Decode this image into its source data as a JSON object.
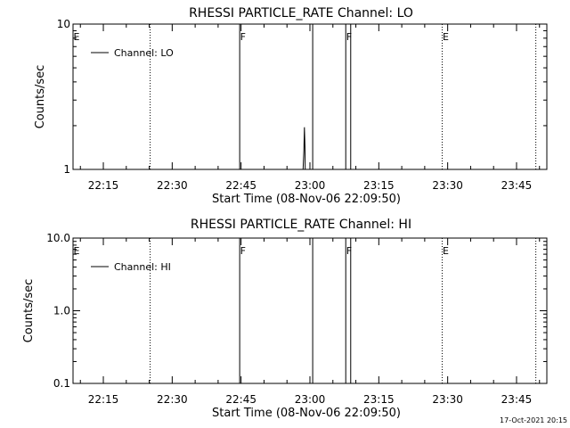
{
  "footer_timestamp": "17-Oct-2021 20:15",
  "colors": {
    "background": "#ffffff",
    "foreground": "#000000"
  },
  "chart_data": [
    {
      "type": "line",
      "title": "RHESSI PARTICLE_RATE Channel: LO",
      "xlabel": "Start Time (08-Nov-06 22:09:50)",
      "ylabel": "Counts/sec",
      "yscale": "log",
      "ylim": [
        1,
        10
      ],
      "yticks": [
        {
          "value": 1,
          "label": "1"
        },
        {
          "value": 10,
          "label": "10"
        }
      ],
      "xlim": [
        22.14,
        23.86
      ],
      "xticks": [
        {
          "value": 22.25,
          "label": "22:15"
        },
        {
          "value": 22.5,
          "label": "22:30"
        },
        {
          "value": 22.75,
          "label": "22:45"
        },
        {
          "value": 23.0,
          "label": "23:00"
        },
        {
          "value": 23.25,
          "label": "23:15"
        },
        {
          "value": 23.5,
          "label": "23:30"
        },
        {
          "value": 23.75,
          "label": "23:45"
        }
      ],
      "legend": {
        "position": "top-left",
        "entries": [
          "Channel: LO"
        ]
      },
      "series": [
        {
          "name": "Channel: LO",
          "x": [
            22.965,
            22.975,
            22.978,
            22.98,
            22.982,
            22.983
          ],
          "y": [
            1,
            1,
            1.35,
            1.95,
            1.45,
            1
          ]
        }
      ],
      "event_lines": [
        {
          "x": 22.42,
          "style": "dotted",
          "label": ""
        },
        {
          "x": 22.745,
          "style": "solid",
          "label": "F"
        },
        {
          "x": 23.01,
          "style": "solid",
          "label": ""
        },
        {
          "x": 23.13,
          "style": "solid",
          "label": "F"
        },
        {
          "x": 23.148,
          "style": "solid",
          "label": ""
        },
        {
          "x": 23.48,
          "style": "dotted",
          "label": "E"
        },
        {
          "x": 23.82,
          "style": "dotted",
          "label": ""
        }
      ],
      "edge_label": "E"
    },
    {
      "type": "line",
      "title": "RHESSI PARTICLE_RATE Channel: HI",
      "xlabel": "Start Time (08-Nov-06 22:09:50)",
      "ylabel": "Counts/sec",
      "yscale": "log",
      "ylim": [
        0.1,
        10
      ],
      "yticks": [
        {
          "value": 0.1,
          "label": "0.1"
        },
        {
          "value": 1,
          "label": "1.0"
        },
        {
          "value": 10,
          "label": "10.0"
        }
      ],
      "xlim": [
        22.14,
        23.86
      ],
      "xticks": [
        {
          "value": 22.25,
          "label": "22:15"
        },
        {
          "value": 22.5,
          "label": "22:30"
        },
        {
          "value": 22.75,
          "label": "22:45"
        },
        {
          "value": 23.0,
          "label": "23:00"
        },
        {
          "value": 23.25,
          "label": "23:15"
        },
        {
          "value": 23.5,
          "label": "23:30"
        },
        {
          "value": 23.75,
          "label": "23:45"
        }
      ],
      "legend": {
        "position": "top-left",
        "entries": [
          "Channel: HI"
        ]
      },
      "series": [
        {
          "name": "Channel: HI",
          "x": [],
          "y": []
        }
      ],
      "event_lines": [
        {
          "x": 22.42,
          "style": "dotted",
          "label": ""
        },
        {
          "x": 22.745,
          "style": "solid",
          "label": "F"
        },
        {
          "x": 23.01,
          "style": "solid",
          "label": ""
        },
        {
          "x": 23.13,
          "style": "solid",
          "label": "F"
        },
        {
          "x": 23.148,
          "style": "solid",
          "label": ""
        },
        {
          "x": 23.48,
          "style": "dotted",
          "label": "E"
        },
        {
          "x": 23.82,
          "style": "dotted",
          "label": ""
        }
      ],
      "edge_label": "E"
    }
  ]
}
